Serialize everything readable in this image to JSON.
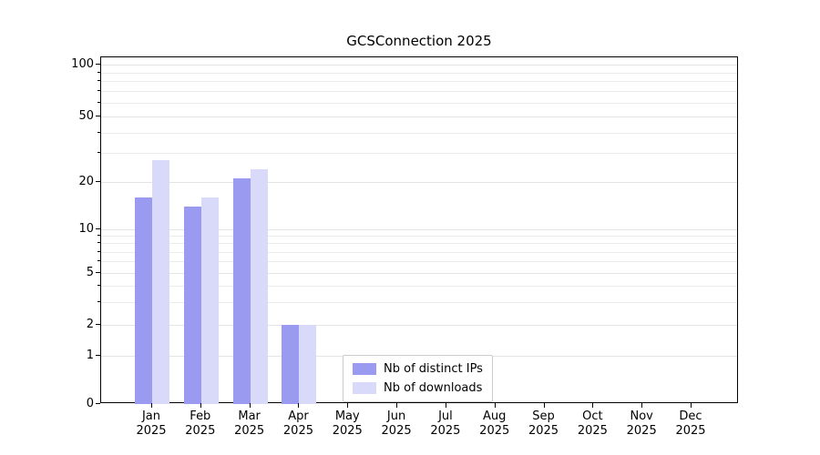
{
  "chart_data": {
    "type": "bar",
    "title": "GCSConnection 2025",
    "categories": [
      "Jan",
      "Feb",
      "Mar",
      "Apr",
      "May",
      "Jun",
      "Jul",
      "Aug",
      "Sep",
      "Oct",
      "Nov",
      "Dec"
    ],
    "year": "2025",
    "series": [
      {
        "name": "Nb of distinct IPs",
        "color": "#9a9af0",
        "values": [
          16,
          14,
          21,
          2,
          0,
          0,
          0,
          0,
          0,
          0,
          0,
          0
        ]
      },
      {
        "name": "Nb of downloads",
        "color": "#d9d9f9",
        "values": [
          27,
          16,
          24,
          2,
          0,
          0,
          0,
          0,
          0,
          0,
          0,
          0
        ]
      }
    ],
    "xlabel": "",
    "ylabel": "",
    "yscale": "symlog",
    "ylim": [
      0,
      115
    ],
    "yticks": [
      0,
      1,
      2,
      5,
      10,
      20,
      50,
      100
    ],
    "minor_yticks": [
      3,
      4,
      6,
      7,
      8,
      9,
      30,
      40,
      60,
      70,
      80,
      90
    ],
    "grid": "horizontal",
    "legend_position": "lower center"
  }
}
